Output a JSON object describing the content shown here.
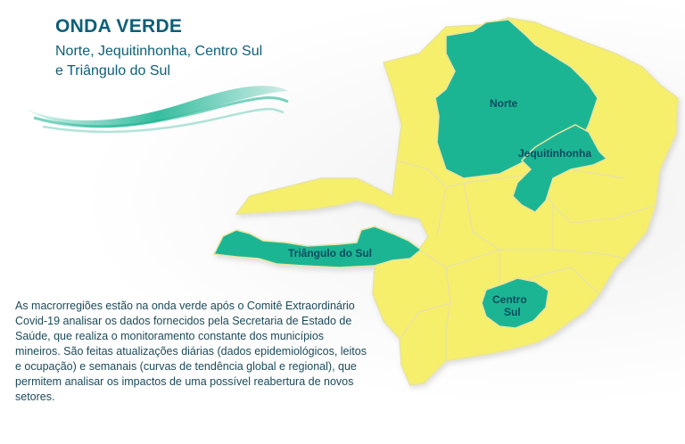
{
  "header": {
    "title": "ONDA VERDE",
    "subtitle_line1": "Norte, Jequitinhonha, Centro Sul",
    "subtitle_line2": "e Triângulo do Sul"
  },
  "map": {
    "labels": {
      "norte": "Norte",
      "jequitinhonha": "Jequitinhonha",
      "triangulo_sul": "Triângulo do Sul",
      "centro_sul_1": "Centro",
      "centro_sul_2": "Sul"
    },
    "colors": {
      "green_wave": "#1fb594",
      "other_regions": "#f6ef6c",
      "border": "#e9e3a0",
      "accent": "#0c5f78"
    }
  },
  "description": "As macrorregiões estão na onda verde após o Comitê Extraordinário Covid-19 analisar os dados fornecidos pela Secretaria de Estado de Saúde, que realiza o monitoramento constante dos municípios mineiros. São feitas atualizações diárias (dados epidemiológicos, leitos e ocupação) e semanais (curvas de tendência global e regional), que permitem analisar os impactos de uma possível reabertura de novos setores."
}
